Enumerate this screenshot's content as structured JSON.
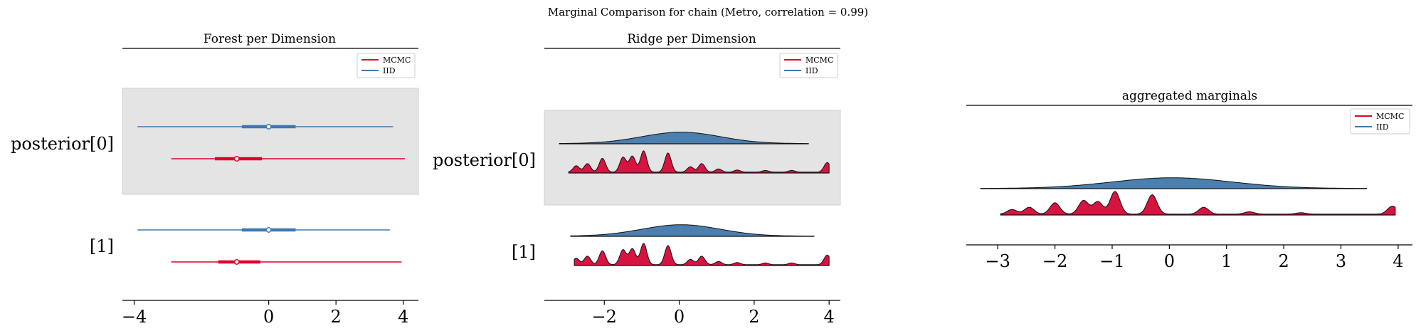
{
  "suptitle": "Marginal Comparison for chain (Metro, correlation = 0.99)",
  "colors": {
    "mcmc": "#e0002a",
    "iid": "#3f78b0",
    "ridge_mcmc_fill": "#d6143f",
    "ridge_iid_fill": "#4a7faf",
    "band": "#e4e4e4"
  },
  "legend": {
    "mcmc_label": "MCMC",
    "iid_label": "IID"
  },
  "chart_data": [
    {
      "type": "forest",
      "title": "Forest per Dimension",
      "xlim": [
        -4.35,
        4.45
      ],
      "xticks": [
        -4,
        0,
        2,
        4
      ],
      "xtick_labels": [
        "−4",
        "0",
        "2",
        "4"
      ],
      "row_labels": [
        "posterior[0]",
        "[1]"
      ],
      "series": [
        {
          "name": "IID",
          "rows": [
            {
              "row": 0,
              "min": -3.9,
              "q25": -0.8,
              "median": 0.0,
              "q75": 0.8,
              "max": 3.7
            },
            {
              "row": 1,
              "min": -3.9,
              "q25": -0.8,
              "median": 0.0,
              "q75": 0.8,
              "max": 3.6
            }
          ]
        },
        {
          "name": "MCMC",
          "rows": [
            {
              "row": 0,
              "min": -2.9,
              "q25": -1.6,
              "median": -0.95,
              "q75": -0.2,
              "max": 4.05
            },
            {
              "row": 1,
              "min": -2.9,
              "q25": -1.5,
              "median": -0.95,
              "q75": -0.25,
              "max": 3.95
            }
          ]
        }
      ]
    },
    {
      "type": "ridge",
      "title": "Ridge per Dimension",
      "xlim": [
        -3.6,
        4.3
      ],
      "xticks": [
        -2,
        0,
        2,
        4
      ],
      "xtick_labels": [
        "−2",
        "0",
        "2",
        "4"
      ],
      "row_labels": [
        "posterior[0]",
        "[1]"
      ],
      "series": [
        {
          "name": "IID",
          "rows": [
            {
              "row": 0,
              "range": [
                -3.2,
                3.45
              ]
            },
            {
              "row": 1,
              "range": [
                -2.9,
                3.6
              ]
            }
          ]
        },
        {
          "name": "MCMC",
          "rows": [
            {
              "row": 0,
              "range": [
                -2.95,
                4.0
              ]
            },
            {
              "row": 1,
              "range": [
                -2.8,
                4.0
              ]
            }
          ]
        }
      ],
      "mcmc_peaks": [
        -2.75,
        -2.45,
        -2.05,
        -1.5,
        -1.25,
        -0.95,
        -0.3,
        0.3,
        0.6,
        1.05,
        1.55,
        2.3,
        3.0,
        3.95
      ],
      "mcmc_peak_heights": [
        0.3,
        0.4,
        0.65,
        0.7,
        0.75,
        1.0,
        0.9,
        0.25,
        0.4,
        0.15,
        0.1,
        0.08,
        0.08,
        0.45
      ]
    },
    {
      "type": "ridge",
      "title": "aggregated marginals",
      "xlim": [
        -3.55,
        4.25
      ],
      "xticks": [
        -3,
        -2,
        -1,
        0,
        1,
        2,
        3,
        4
      ],
      "xtick_labels": [
        "−3",
        "−2",
        "−1",
        "0",
        "1",
        "2",
        "3",
        "4"
      ],
      "series": [
        {
          "name": "IID",
          "range": [
            -3.3,
            3.45
          ]
        },
        {
          "name": "MCMC",
          "range": [
            -2.95,
            3.95
          ]
        }
      ],
      "mcmc_peaks": [
        -2.75,
        -2.45,
        -2.0,
        -1.5,
        -1.25,
        -0.95,
        -0.3,
        0.6,
        1.4,
        2.3,
        3.9
      ],
      "mcmc_peak_heights": [
        0.2,
        0.3,
        0.5,
        0.6,
        0.55,
        1.0,
        0.85,
        0.3,
        0.1,
        0.06,
        0.35
      ]
    }
  ]
}
